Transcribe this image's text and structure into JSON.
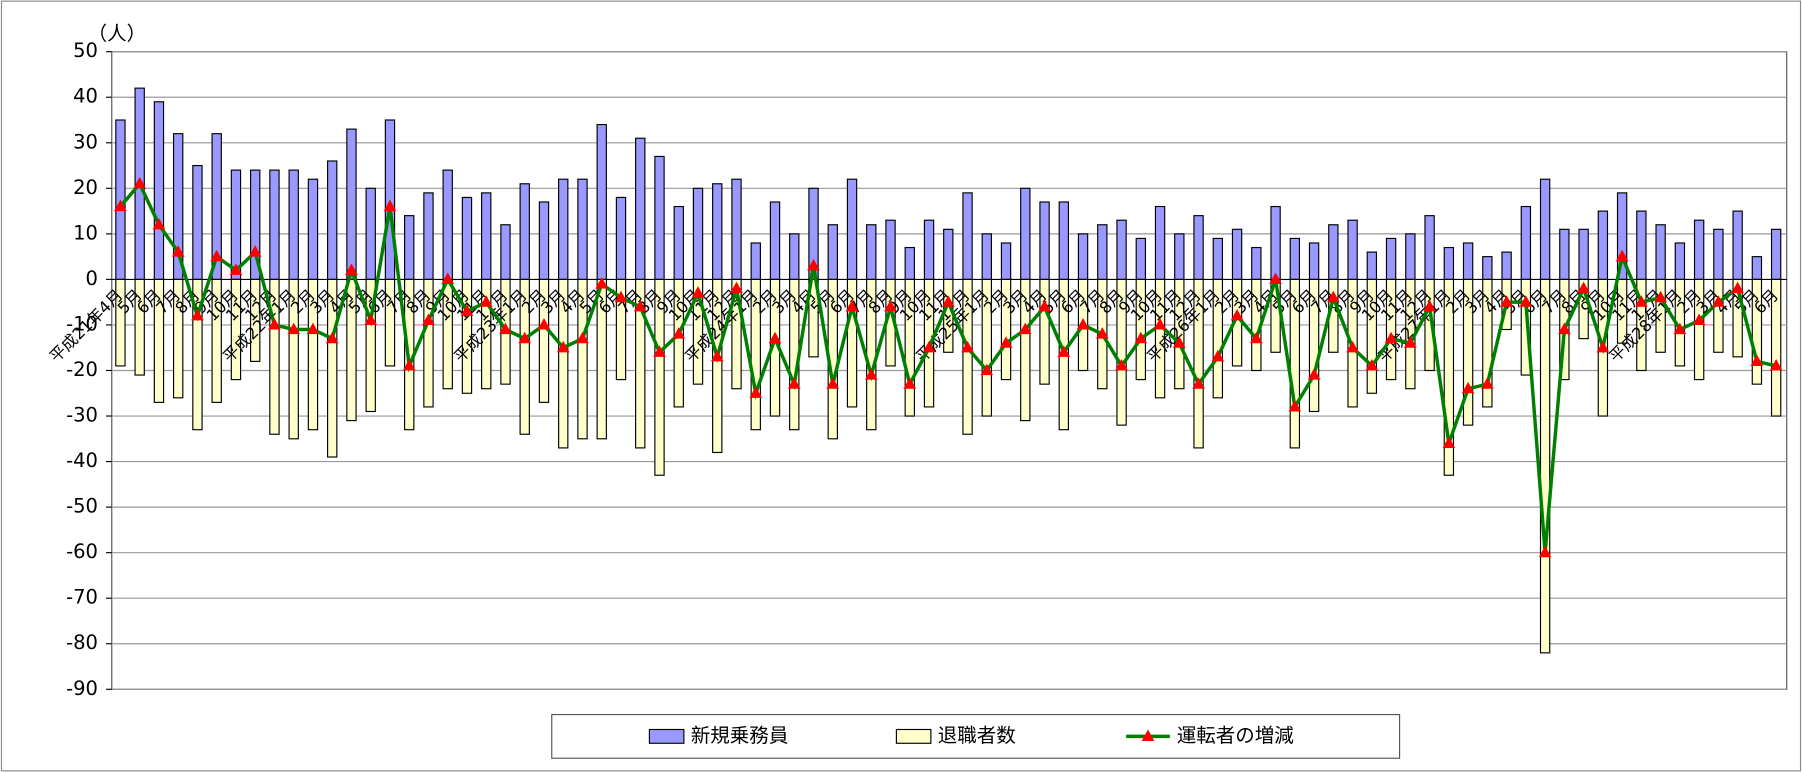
{
  "chart_data": {
    "type": "bar",
    "y_label": "（人）",
    "categories": [
      "平成21年4月",
      "5月",
      "6月",
      "7月",
      "8月",
      "9月",
      "10月",
      "11月",
      "12月",
      "平成22年1月",
      "2月",
      "3月",
      "4月",
      "5月",
      "6月",
      "7月",
      "8月",
      "9月",
      "10月",
      "11月",
      "12月",
      "平成23年1月",
      "2月",
      "3月",
      "4月",
      "5月",
      "6月",
      "7月",
      "8月",
      "9月",
      "10月",
      "11月",
      "12月",
      "平成24年1月",
      "2月",
      "3月",
      "4月",
      "5月",
      "6月",
      "7月",
      "8月",
      "9月",
      "10月",
      "11月",
      "12月",
      "平成25年1月",
      "2月",
      "3月",
      "4月",
      "5月",
      "6月",
      "7月",
      "8月",
      "9月",
      "10月",
      "11月",
      "12月",
      "平成26年1月",
      "2月",
      "3月",
      "4月",
      "5月",
      "6月",
      "7月",
      "8月",
      "9月",
      "10月",
      "11月",
      "12月",
      "平成27年1月",
      "2月",
      "3月",
      "4月",
      "5月",
      "6月",
      "7月",
      "8月",
      "9月",
      "10月",
      "11月",
      "12月",
      "平成28年1月",
      "2月",
      "3月",
      "4月",
      "5月",
      "6月"
    ],
    "series": [
      {
        "name": "新規乗務員",
        "type": "bar",
        "color": "#9999ff",
        "values": [
          35,
          42,
          39,
          32,
          25,
          32,
          24,
          24,
          24,
          24,
          22,
          26,
          33,
          20,
          35,
          14,
          19,
          24,
          18,
          19,
          12,
          21,
          17,
          22,
          22,
          34,
          18,
          31,
          27,
          16,
          20,
          21,
          22,
          8,
          17,
          10,
          20,
          12,
          22,
          12,
          13,
          7,
          13,
          11,
          19,
          10,
          8,
          20,
          17,
          17,
          10,
          12,
          13,
          9,
          16,
          10,
          14,
          9,
          11,
          7,
          16,
          9,
          8,
          12,
          13,
          6,
          9,
          10,
          14,
          7,
          8,
          5,
          6,
          16,
          22,
          11,
          11,
          15,
          19,
          15,
          12,
          8,
          13,
          11,
          15,
          5,
          11
        ]
      },
      {
        "name": "退職者数",
        "type": "bar",
        "color": "#ffffcc",
        "values": [
          -19,
          -21,
          -27,
          -26,
          -33,
          -27,
          -22,
          -18,
          -34,
          -35,
          -33,
          -39,
          -31,
          -29,
          -19,
          -33,
          -28,
          -24,
          -25,
          -24,
          -23,
          -34,
          -27,
          -37,
          -35,
          -35,
          -22,
          -37,
          -43,
          -28,
          -23,
          -38,
          -24,
          -33,
          -30,
          -33,
          -17,
          -35,
          -28,
          -33,
          -19,
          -30,
          -28,
          -16,
          -34,
          -30,
          -22,
          -31,
          -23,
          -33,
          -20,
          -24,
          -32,
          -22,
          -26,
          -24,
          -37,
          -26,
          -19,
          -20,
          -16,
          -37,
          -29,
          -16,
          -28,
          -25,
          -22,
          -24,
          -20,
          -43,
          -32,
          -28,
          -11,
          -21,
          -82,
          -22,
          -13,
          -30,
          -14,
          -20,
          -16,
          -19,
          -22,
          -16,
          -17,
          -23,
          -30
        ]
      },
      {
        "name": "運転者の増減",
        "type": "line",
        "color": "#008000",
        "marker_color": "#ff0000",
        "values": [
          16,
          21,
          12,
          6,
          -8,
          5,
          2,
          6,
          -10,
          -11,
          -11,
          -13,
          2,
          -9,
          16,
          -19,
          -9,
          0,
          -7,
          -5,
          -11,
          -13,
          -10,
          -15,
          -13,
          -1,
          -4,
          -6,
          -16,
          -12,
          -3,
          -17,
          -2,
          -25,
          -13,
          -23,
          3,
          -23,
          -6,
          -21,
          -6,
          -23,
          -15,
          -5,
          -15,
          -20,
          -14,
          -11,
          -6,
          -16,
          -10,
          -12,
          -19,
          -13,
          -10,
          -14,
          -23,
          -17,
          -8,
          -13,
          0,
          -28,
          -21,
          -4,
          -15,
          -19,
          -13,
          -14,
          -6,
          -36,
          -24,
          -23,
          -5,
          -5,
          -60,
          -11,
          -2,
          -15,
          5,
          -5,
          -4,
          -11,
          -9,
          -5,
          -2,
          -18,
          -19
        ]
      }
    ],
    "ylim": [
      -90,
      50
    ],
    "yticks": [
      -90,
      -80,
      -70,
      -60,
      -50,
      -40,
      -30,
      -20,
      -10,
      0,
      10,
      20,
      30,
      40,
      50
    ],
    "grid": true,
    "legend": "bottom"
  }
}
